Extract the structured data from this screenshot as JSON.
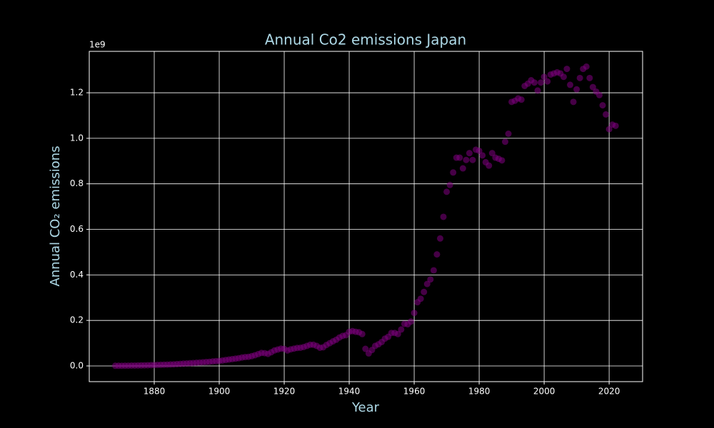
{
  "chart_data": {
    "type": "scatter",
    "title": "Annual Co2 emissions Japan",
    "x_label": "Year",
    "y_label": "Annual CO₂ emissions",
    "y_offset_label": "1e9",
    "x": [
      1868,
      1869,
      1870,
      1871,
      1872,
      1873,
      1874,
      1875,
      1876,
      1877,
      1878,
      1879,
      1880,
      1881,
      1882,
      1883,
      1884,
      1885,
      1886,
      1887,
      1888,
      1889,
      1890,
      1891,
      1892,
      1893,
      1894,
      1895,
      1896,
      1897,
      1898,
      1899,
      1900,
      1901,
      1902,
      1903,
      1904,
      1905,
      1906,
      1907,
      1908,
      1909,
      1910,
      1911,
      1912,
      1913,
      1914,
      1915,
      1916,
      1917,
      1918,
      1919,
      1920,
      1921,
      1922,
      1923,
      1924,
      1925,
      1926,
      1927,
      1928,
      1929,
      1930,
      1931,
      1932,
      1933,
      1934,
      1935,
      1936,
      1937,
      1938,
      1939,
      1940,
      1941,
      1942,
      1943,
      1944,
      1945,
      1946,
      1947,
      1948,
      1949,
      1950,
      1951,
      1952,
      1953,
      1954,
      1955,
      1956,
      1957,
      1958,
      1959,
      1960,
      1961,
      1962,
      1963,
      1964,
      1965,
      1966,
      1967,
      1968,
      1969,
      1970,
      1971,
      1972,
      1973,
      1974,
      1975,
      1976,
      1977,
      1978,
      1979,
      1980,
      1981,
      1982,
      1983,
      1984,
      1985,
      1986,
      1987,
      1988,
      1989,
      1990,
      1991,
      1992,
      1993,
      1994,
      1995,
      1996,
      1997,
      1998,
      1999,
      2000,
      2001,
      2002,
      2003,
      2004,
      2005,
      2006,
      2007,
      2008,
      2009,
      2010,
      2011,
      2012,
      2013,
      2014,
      2015,
      2016,
      2017,
      2018,
      2019,
      2020,
      2021,
      2022
    ],
    "values": [
      0.0006,
      0.0007,
      0.0008,
      0.001,
      0.0012,
      0.0015,
      0.0017,
      0.002,
      0.0022,
      0.0025,
      0.003,
      0.0035,
      0.004,
      0.0045,
      0.005,
      0.0055,
      0.006,
      0.0065,
      0.007,
      0.008,
      0.009,
      0.01,
      0.011,
      0.012,
      0.013,
      0.014,
      0.015,
      0.016,
      0.017,
      0.018,
      0.02,
      0.021,
      0.022,
      0.024,
      0.026,
      0.028,
      0.03,
      0.032,
      0.034,
      0.037,
      0.039,
      0.04,
      0.043,
      0.047,
      0.052,
      0.057,
      0.056,
      0.053,
      0.06,
      0.068,
      0.072,
      0.076,
      0.075,
      0.068,
      0.073,
      0.076,
      0.079,
      0.08,
      0.083,
      0.088,
      0.093,
      0.093,
      0.088,
      0.08,
      0.082,
      0.092,
      0.1,
      0.108,
      0.115,
      0.125,
      0.132,
      0.135,
      0.15,
      0.153,
      0.15,
      0.148,
      0.14,
      0.075,
      0.055,
      0.07,
      0.088,
      0.095,
      0.105,
      0.12,
      0.128,
      0.145,
      0.145,
      0.14,
      0.16,
      0.185,
      0.183,
      0.195,
      0.233,
      0.28,
      0.295,
      0.325,
      0.36,
      0.38,
      0.42,
      0.49,
      0.56,
      0.655,
      0.765,
      0.795,
      0.85,
      0.915,
      0.915,
      0.868,
      0.905,
      0.935,
      0.905,
      0.95,
      0.945,
      0.925,
      0.895,
      0.88,
      0.935,
      0.915,
      0.91,
      0.903,
      0.985,
      1.02,
      1.16,
      1.165,
      1.175,
      1.17,
      1.23,
      1.24,
      1.255,
      1.245,
      1.21,
      1.245,
      1.27,
      1.25,
      1.28,
      1.285,
      1.29,
      1.285,
      1.27,
      1.305,
      1.235,
      1.16,
      1.215,
      1.265,
      1.305,
      1.315,
      1.265,
      1.225,
      1.205,
      1.19,
      1.145,
      1.105,
      1.04,
      1.06,
      1.055
    ],
    "color": "#800080",
    "xlim": [
      1860,
      2030.3
    ],
    "xticks": [
      1880,
      1900,
      1920,
      1940,
      1960,
      1980,
      2000,
      2020
    ],
    "ylim": [
      -0.069,
      1.382
    ],
    "yticks": [
      {
        "value": 0,
        "label": "0.0"
      },
      0.2,
      0.4,
      0.6,
      0.8,
      {
        "value": 1,
        "label": "1.0"
      },
      1.2
    ],
    "grid": true
  }
}
